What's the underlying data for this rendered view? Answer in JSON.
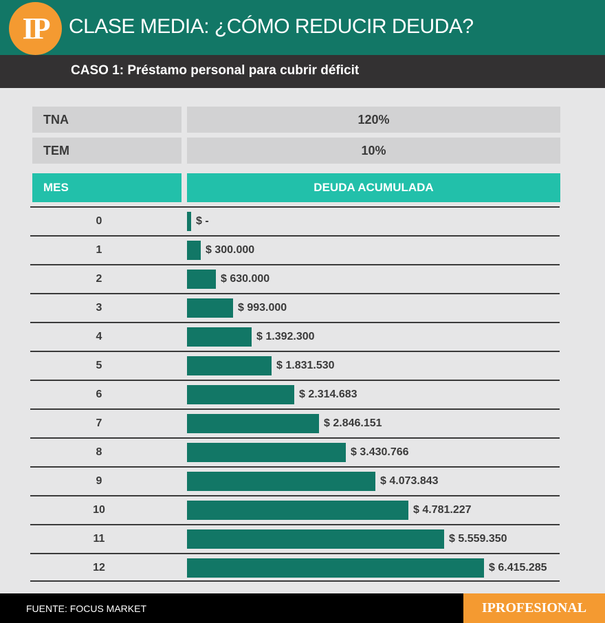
{
  "header": {
    "logo_text": "IP",
    "title": "CLASE MEDIA: ¿CÓMO REDUCIR DEUDA?",
    "subtitle": "CASO 1: Préstamo personal para cubrir déficit"
  },
  "params": [
    {
      "label": "TNA",
      "value": "120%"
    },
    {
      "label": "TEM",
      "value": "10%"
    }
  ],
  "columns": {
    "mes": "MES",
    "deuda": "DEUDA ACUMULADA"
  },
  "chart_data": {
    "type": "bar",
    "orientation": "horizontal",
    "categories": [
      "0",
      "1",
      "2",
      "3",
      "4",
      "5",
      "6",
      "7",
      "8",
      "9",
      "10",
      "11",
      "12"
    ],
    "values": [
      0,
      300000,
      630000,
      993000,
      1392300,
      1831530,
      2314683,
      2846151,
      3430766,
      4073843,
      4781227,
      5559350,
      6415285
    ],
    "labels": [
      "$ -",
      "$ 300.000",
      "$ 630.000",
      "$ 993.000",
      "$ 1.392.300",
      "$ 1.831.530",
      "$ 2.314.683",
      "$ 2.846.151",
      "$ 3.430.766",
      "$ 4.073.843",
      "$ 4.781.227",
      "$ 5.559.350",
      "$ 6.415.285"
    ],
    "xlabel": "DEUDA ACUMULADA",
    "ylabel": "MES",
    "bar_color": "#127766"
  },
  "footer": {
    "source": "FUENTE: FOCUS MARKET",
    "brand": "IPROFESIONAL"
  },
  "colors": {
    "teal_dark": "#127766",
    "teal_light": "#22c0aa",
    "orange": "#f49a31",
    "dark_gray": "#333132"
  }
}
